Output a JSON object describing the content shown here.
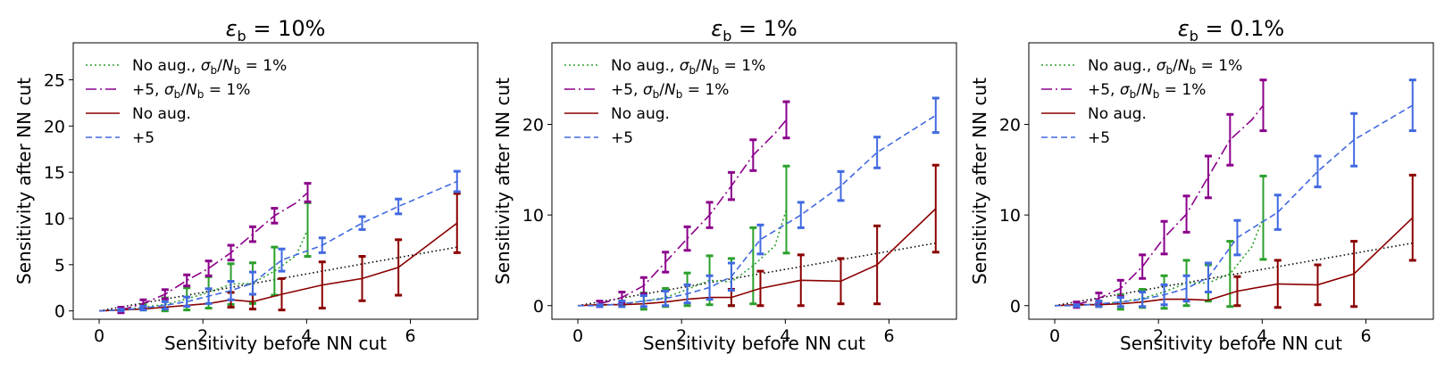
{
  "chart_data": [
    {
      "type": "line",
      "title": "εb = 10%",
      "title_main": "ε",
      "title_sub": "b",
      "title_value": "= 10%",
      "xlabel": "Sensitivity before NN cut",
      "ylabel": "Sensitivity after NN cut",
      "xlim": [
        -0.5,
        7.3
      ],
      "ylim": [
        -0.9,
        29
      ],
      "xticks": [
        0,
        2,
        4,
        6
      ],
      "xtick_labels": [
        "0",
        "2",
        "4",
        "6"
      ],
      "yticks": [
        0,
        5,
        10,
        15,
        20,
        25
      ],
      "ytick_labels": [
        "0",
        "5",
        "10",
        "15",
        "20",
        "25"
      ],
      "legend": [
        {
          "series": "no_aug_sys",
          "text": "No aug., σb/Nb = 1%",
          "main": "No aug., ",
          "has_frac": true
        },
        {
          "series": "plus5_sys",
          "text": "+5, σb/Nb = 1%",
          "main": "+5, ",
          "has_frac": true
        },
        {
          "series": "no_aug",
          "text": "No aug.",
          "main": "No aug.",
          "has_frac": false
        },
        {
          "series": "plus5",
          "text": "+5",
          "main": "+5",
          "has_frac": false
        }
      ],
      "reference_line": {
        "x": [
          0,
          6.9
        ],
        "y": [
          0,
          6.9
        ]
      },
      "series": [
        {
          "name": "No aug., σb/Nb = 1%",
          "key": "no_aug_sys",
          "x": [
            0.42,
            0.85,
            1.27,
            1.69,
            2.11,
            2.54,
            2.96,
            3.38,
            3.8,
            4.02
          ],
          "y": [
            0.1,
            0.4,
            0.7,
            1.3,
            2.0,
            2.9,
            3.0,
            4.3,
            6.0,
            8.8
          ],
          "err_low": [
            0.1,
            0.3,
            0.7,
            1.2,
            1.7,
            2.2,
            2.2,
            2.6,
            3.4,
            2.9
          ],
          "err_high": [
            0.1,
            0.3,
            0.7,
            1.2,
            1.7,
            2.2,
            2.2,
            2.6,
            3.4,
            2.9
          ],
          "errbar_idx": [
            1,
            2,
            3,
            4,
            5,
            6,
            7,
            9
          ]
        },
        {
          "name": "+5, σb/Nb = 1%",
          "key": "plus5_sys",
          "x": [
            0.42,
            0.85,
            1.27,
            1.69,
            2.11,
            2.54,
            2.96,
            3.38,
            3.8,
            4.02
          ],
          "y": [
            0.1,
            0.8,
            1.8,
            3.3,
            4.6,
            6.3,
            8.3,
            10.3,
            11.7,
            12.8
          ],
          "err_low": [
            0.3,
            0.4,
            0.5,
            0.6,
            0.8,
            0.8,
            0.8,
            0.8,
            0.9,
            1.0
          ],
          "err_high": [
            0.3,
            0.4,
            0.5,
            0.6,
            0.8,
            0.8,
            0.8,
            0.8,
            0.9,
            1.0
          ],
          "errbar_idx": [
            0,
            1,
            2,
            3,
            4,
            5,
            6,
            7,
            9
          ]
        },
        {
          "name": "No aug.",
          "key": "no_aug",
          "x": [
            0.0,
            0.42,
            0.85,
            1.27,
            1.69,
            2.11,
            2.54,
            2.96,
            3.52,
            4.3,
            5.07,
            5.77,
            6.9
          ],
          "y": [
            0.0,
            0.1,
            0.2,
            0.4,
            0.6,
            0.8,
            1.2,
            1.0,
            1.8,
            2.8,
            3.5,
            4.7,
            9.5
          ],
          "err_low": [
            0,
            0,
            0,
            0,
            0,
            0,
            0.8,
            0.8,
            1.7,
            2.5,
            2.4,
            3.0,
            3.2
          ],
          "err_high": [
            0,
            0,
            0,
            0,
            0,
            0,
            0.8,
            0.8,
            1.7,
            2.5,
            2.4,
            3.0,
            3.2
          ],
          "errbar_idx": [
            6,
            7,
            8,
            9,
            10,
            11,
            12
          ]
        },
        {
          "name": "+5",
          "key": "plus5",
          "x": [
            0.0,
            0.42,
            0.85,
            1.27,
            1.69,
            2.11,
            2.54,
            2.96,
            3.52,
            4.3,
            5.07,
            5.77,
            6.9
          ],
          "y": [
            0.0,
            0.1,
            0.3,
            0.6,
            1.0,
            1.6,
            2.2,
            3.0,
            5.5,
            7.1,
            9.5,
            11.3,
            14.0
          ],
          "err_low": [
            0,
            0.1,
            0.2,
            0.4,
            0.5,
            0.8,
            1.0,
            1.2,
            1.2,
            0.8,
            0.7,
            0.8,
            1.1
          ],
          "err_high": [
            0,
            0.1,
            0.2,
            0.4,
            0.5,
            0.8,
            1.0,
            1.2,
            1.2,
            0.8,
            0.7,
            0.8,
            1.1
          ],
          "errbar_idx": [
            1,
            2,
            3,
            4,
            5,
            6,
            7,
            8,
            9,
            10,
            11,
            12
          ]
        }
      ]
    },
    {
      "type": "line",
      "title": "εb = 1%",
      "title_main": "ε",
      "title_sub": "b",
      "title_value": "= 1%",
      "xlabel": "Sensitivity before NN cut",
      "ylabel": "Sensitivity after NN cut",
      "xlim": [
        -0.5,
        7.3
      ],
      "ylim": [
        -1.5,
        29
      ],
      "xticks": [
        0,
        2,
        4,
        6
      ],
      "xtick_labels": [
        "0",
        "2",
        "4",
        "6"
      ],
      "yticks": [
        0,
        10,
        20
      ],
      "ytick_labels": [
        "0",
        "10",
        "20"
      ],
      "legend": [
        {
          "series": "no_aug_sys",
          "text": "No aug., σb/Nb = 1%",
          "main": "No aug., ",
          "has_frac": true
        },
        {
          "series": "plus5_sys",
          "text": "+5, σb/Nb = 1%",
          "main": "+5, ",
          "has_frac": true
        },
        {
          "series": "no_aug",
          "text": "No aug.",
          "main": "No aug.",
          "has_frac": false
        },
        {
          "series": "plus5",
          "text": "+5",
          "main": "+5",
          "has_frac": false
        }
      ],
      "reference_line": {
        "x": [
          0,
          6.9
        ],
        "y": [
          0,
          6.9
        ]
      },
      "series": [
        {
          "name": "No aug., σb/Nb = 1%",
          "key": "no_aug_sys",
          "x": [
            0.42,
            0.85,
            1.27,
            1.69,
            2.11,
            2.54,
            2.96,
            3.38,
            3.8,
            4.02
          ],
          "y": [
            0.0,
            0.2,
            0.5,
            0.9,
            1.8,
            2.8,
            2.6,
            4.4,
            6.6,
            10.6
          ],
          "err_low": [
            0.1,
            0.3,
            0.9,
            1.0,
            1.8,
            2.7,
            2.6,
            4.2,
            3.3,
            4.8
          ],
          "err_high": [
            0.1,
            0.3,
            0.9,
            1.0,
            1.8,
            2.7,
            2.6,
            4.2,
            3.3,
            4.8
          ],
          "errbar_idx": [
            1,
            2,
            3,
            4,
            5,
            6,
            7,
            9
          ]
        },
        {
          "name": "+5, σb/Nb = 1%",
          "key": "plus5_sys",
          "x": [
            0.42,
            0.85,
            1.27,
            1.69,
            2.11,
            2.54,
            2.96,
            3.38,
            3.8,
            4.02
          ],
          "y": [
            0.2,
            0.9,
            2.2,
            4.8,
            7.4,
            10.0,
            13.2,
            16.6,
            19.0,
            20.5
          ],
          "err_low": [
            0.3,
            0.6,
            0.9,
            1.1,
            1.3,
            1.4,
            1.5,
            1.7,
            1.8,
            2.0
          ],
          "err_high": [
            0.3,
            0.6,
            0.9,
            1.1,
            1.3,
            1.4,
            1.5,
            1.7,
            1.8,
            2.0
          ],
          "errbar_idx": [
            0,
            1,
            2,
            3,
            4,
            5,
            6,
            7,
            9
          ]
        },
        {
          "name": "No aug.",
          "key": "no_aug",
          "x": [
            0.0,
            0.42,
            0.85,
            1.27,
            1.69,
            2.11,
            2.54,
            2.96,
            3.52,
            4.3,
            5.07,
            5.77,
            6.9
          ],
          "y": [
            0.0,
            0.1,
            0.1,
            0.2,
            0.4,
            0.7,
            0.9,
            0.9,
            1.9,
            2.8,
            2.7,
            4.5,
            10.7
          ],
          "err_low": [
            0,
            0,
            0,
            0,
            0,
            0,
            0,
            0.9,
            1.9,
            2.8,
            2.5,
            4.3,
            4.8
          ],
          "err_high": [
            0,
            0,
            0,
            0,
            0,
            0,
            0,
            0.9,
            1.9,
            2.8,
            2.5,
            4.3,
            4.8
          ],
          "errbar_idx": [
            7,
            8,
            9,
            10,
            11,
            12
          ]
        },
        {
          "name": "+5",
          "key": "plus5",
          "x": [
            0.0,
            0.42,
            0.85,
            1.27,
            1.69,
            2.11,
            2.54,
            2.96,
            3.52,
            4.3,
            5.07,
            5.77,
            6.9
          ],
          "y": [
            0.0,
            0.0,
            0.2,
            0.5,
            0.8,
            1.3,
            2.0,
            3.2,
            7.3,
            10.0,
            13.2,
            16.9,
            21.0
          ],
          "err_low": [
            0,
            0.1,
            0.3,
            0.6,
            0.8,
            1.0,
            1.3,
            1.5,
            1.6,
            1.4,
            1.6,
            1.7,
            1.9
          ],
          "err_high": [
            0,
            0.1,
            0.3,
            0.6,
            0.8,
            1.0,
            1.3,
            1.5,
            1.6,
            1.4,
            1.6,
            1.7,
            1.9
          ],
          "errbar_idx": [
            1,
            2,
            3,
            4,
            5,
            6,
            7,
            8,
            9,
            10,
            11,
            12
          ]
        }
      ]
    },
    {
      "type": "line",
      "title": "εb = 0.1%",
      "title_main": "ε",
      "title_sub": "b",
      "title_value": "= 0.1%",
      "xlabel": "Sensitivity before NN cut",
      "ylabel": "Sensitivity after NN cut",
      "xlim": [
        -0.5,
        7.3
      ],
      "ylim": [
        -1.5,
        29
      ],
      "xticks": [
        0,
        2,
        4,
        6
      ],
      "xtick_labels": [
        "0",
        "2",
        "4",
        "6"
      ],
      "yticks": [
        0,
        10,
        20
      ],
      "ytick_labels": [
        "0",
        "10",
        "20"
      ],
      "legend": [
        {
          "series": "no_aug_sys",
          "text": "No aug., σb/Nb = 1%",
          "main": "No aug., ",
          "has_frac": true
        },
        {
          "series": "plus5_sys",
          "text": "+5, σb/Nb = 1%",
          "main": "+5, ",
          "has_frac": true
        },
        {
          "series": "no_aug",
          "text": "No aug.",
          "main": "No aug.",
          "has_frac": false
        },
        {
          "series": "plus5",
          "text": "+5",
          "main": "+5",
          "has_frac": false
        }
      ],
      "reference_line": {
        "x": [
          0,
          6.9
        ],
        "y": [
          0,
          6.9
        ]
      },
      "series": [
        {
          "name": "No aug., σb/Nb = 1%",
          "key": "no_aug_sys",
          "x": [
            0.42,
            0.85,
            1.27,
            1.69,
            2.11,
            2.54,
            2.96,
            3.38,
            3.8,
            4.02
          ],
          "y": [
            0.0,
            0.2,
            0.4,
            0.8,
            1.5,
            2.5,
            2.5,
            3.5,
            6.5,
            9.7
          ],
          "err_low": [
            0.1,
            0.3,
            0.8,
            1.0,
            1.8,
            2.5,
            2.0,
            3.6,
            2.9,
            4.6
          ],
          "err_high": [
            0.1,
            0.3,
            0.8,
            1.0,
            1.8,
            2.5,
            2.0,
            3.6,
            2.9,
            4.6
          ],
          "errbar_idx": [
            1,
            2,
            3,
            4,
            5,
            6,
            7,
            9
          ]
        },
        {
          "name": "+5, σb/Nb = 1%",
          "key": "plus5_sys",
          "x": [
            0.42,
            0.85,
            1.27,
            1.69,
            2.11,
            2.54,
            2.96,
            3.38,
            3.8,
            4.02
          ],
          "y": [
            0.1,
            0.8,
            1.9,
            4.3,
            7.5,
            10.1,
            14.2,
            18.3,
            20.5,
            22.1
          ],
          "err_low": [
            0.3,
            0.6,
            0.9,
            1.3,
            1.8,
            2.0,
            2.3,
            2.8,
            2.9,
            2.8
          ],
          "err_high": [
            0.3,
            0.6,
            0.9,
            1.3,
            1.8,
            2.0,
            2.3,
            2.8,
            2.9,
            2.8
          ],
          "errbar_idx": [
            0,
            1,
            2,
            3,
            4,
            5,
            6,
            7,
            9
          ]
        },
        {
          "name": "No aug.",
          "key": "no_aug",
          "x": [
            0.0,
            0.42,
            0.85,
            1.27,
            1.69,
            2.11,
            2.54,
            2.96,
            3.52,
            4.3,
            5.07,
            5.77,
            6.9
          ],
          "y": [
            0.0,
            0.1,
            0.1,
            0.2,
            0.4,
            0.7,
            0.7,
            0.6,
            1.6,
            2.4,
            2.3,
            3.5,
            9.7
          ],
          "err_low": [
            0,
            0,
            0,
            0,
            0,
            0,
            0,
            0,
            1.6,
            2.6,
            2.2,
            3.6,
            4.7
          ],
          "err_high": [
            0,
            0,
            0,
            0,
            0,
            0,
            0,
            0,
            1.6,
            2.6,
            2.2,
            3.6,
            4.7
          ],
          "errbar_idx": [
            8,
            9,
            10,
            11,
            12
          ]
        },
        {
          "name": "+5",
          "key": "plus5",
          "x": [
            0.0,
            0.42,
            0.85,
            1.27,
            1.69,
            2.11,
            2.54,
            2.96,
            3.52,
            4.3,
            5.07,
            5.77,
            6.9
          ],
          "y": [
            0.0,
            0.0,
            0.2,
            0.4,
            0.7,
            1.2,
            1.9,
            3.1,
            7.5,
            10.3,
            14.8,
            18.3,
            22.1
          ],
          "err_low": [
            0,
            0.1,
            0.3,
            0.5,
            0.8,
            1.1,
            1.4,
            1.6,
            1.9,
            1.9,
            1.7,
            2.9,
            2.8
          ],
          "err_high": [
            0,
            0.1,
            0.3,
            0.5,
            0.8,
            1.1,
            1.4,
            1.6,
            1.9,
            1.9,
            1.7,
            2.9,
            2.8
          ],
          "errbar_idx": [
            1,
            2,
            3,
            4,
            5,
            6,
            7,
            8,
            9,
            10,
            11,
            12
          ]
        }
      ]
    }
  ],
  "styles": {
    "no_aug_sys": {
      "color": "#2ca02c",
      "dash": "2,3",
      "width": 1.6
    },
    "plus5_sys": {
      "color": "#8b008b",
      "dash": "12,4,2,4",
      "width": 1.6
    },
    "no_aug": {
      "color": "#8b0000",
      "dash": "",
      "width": 1.6
    },
    "plus5": {
      "color": "#4169e1",
      "dash": "7,4",
      "width": 1.6
    },
    "reference": {
      "color": "#000000",
      "dash": "1.5,3",
      "width": 1.6
    }
  }
}
